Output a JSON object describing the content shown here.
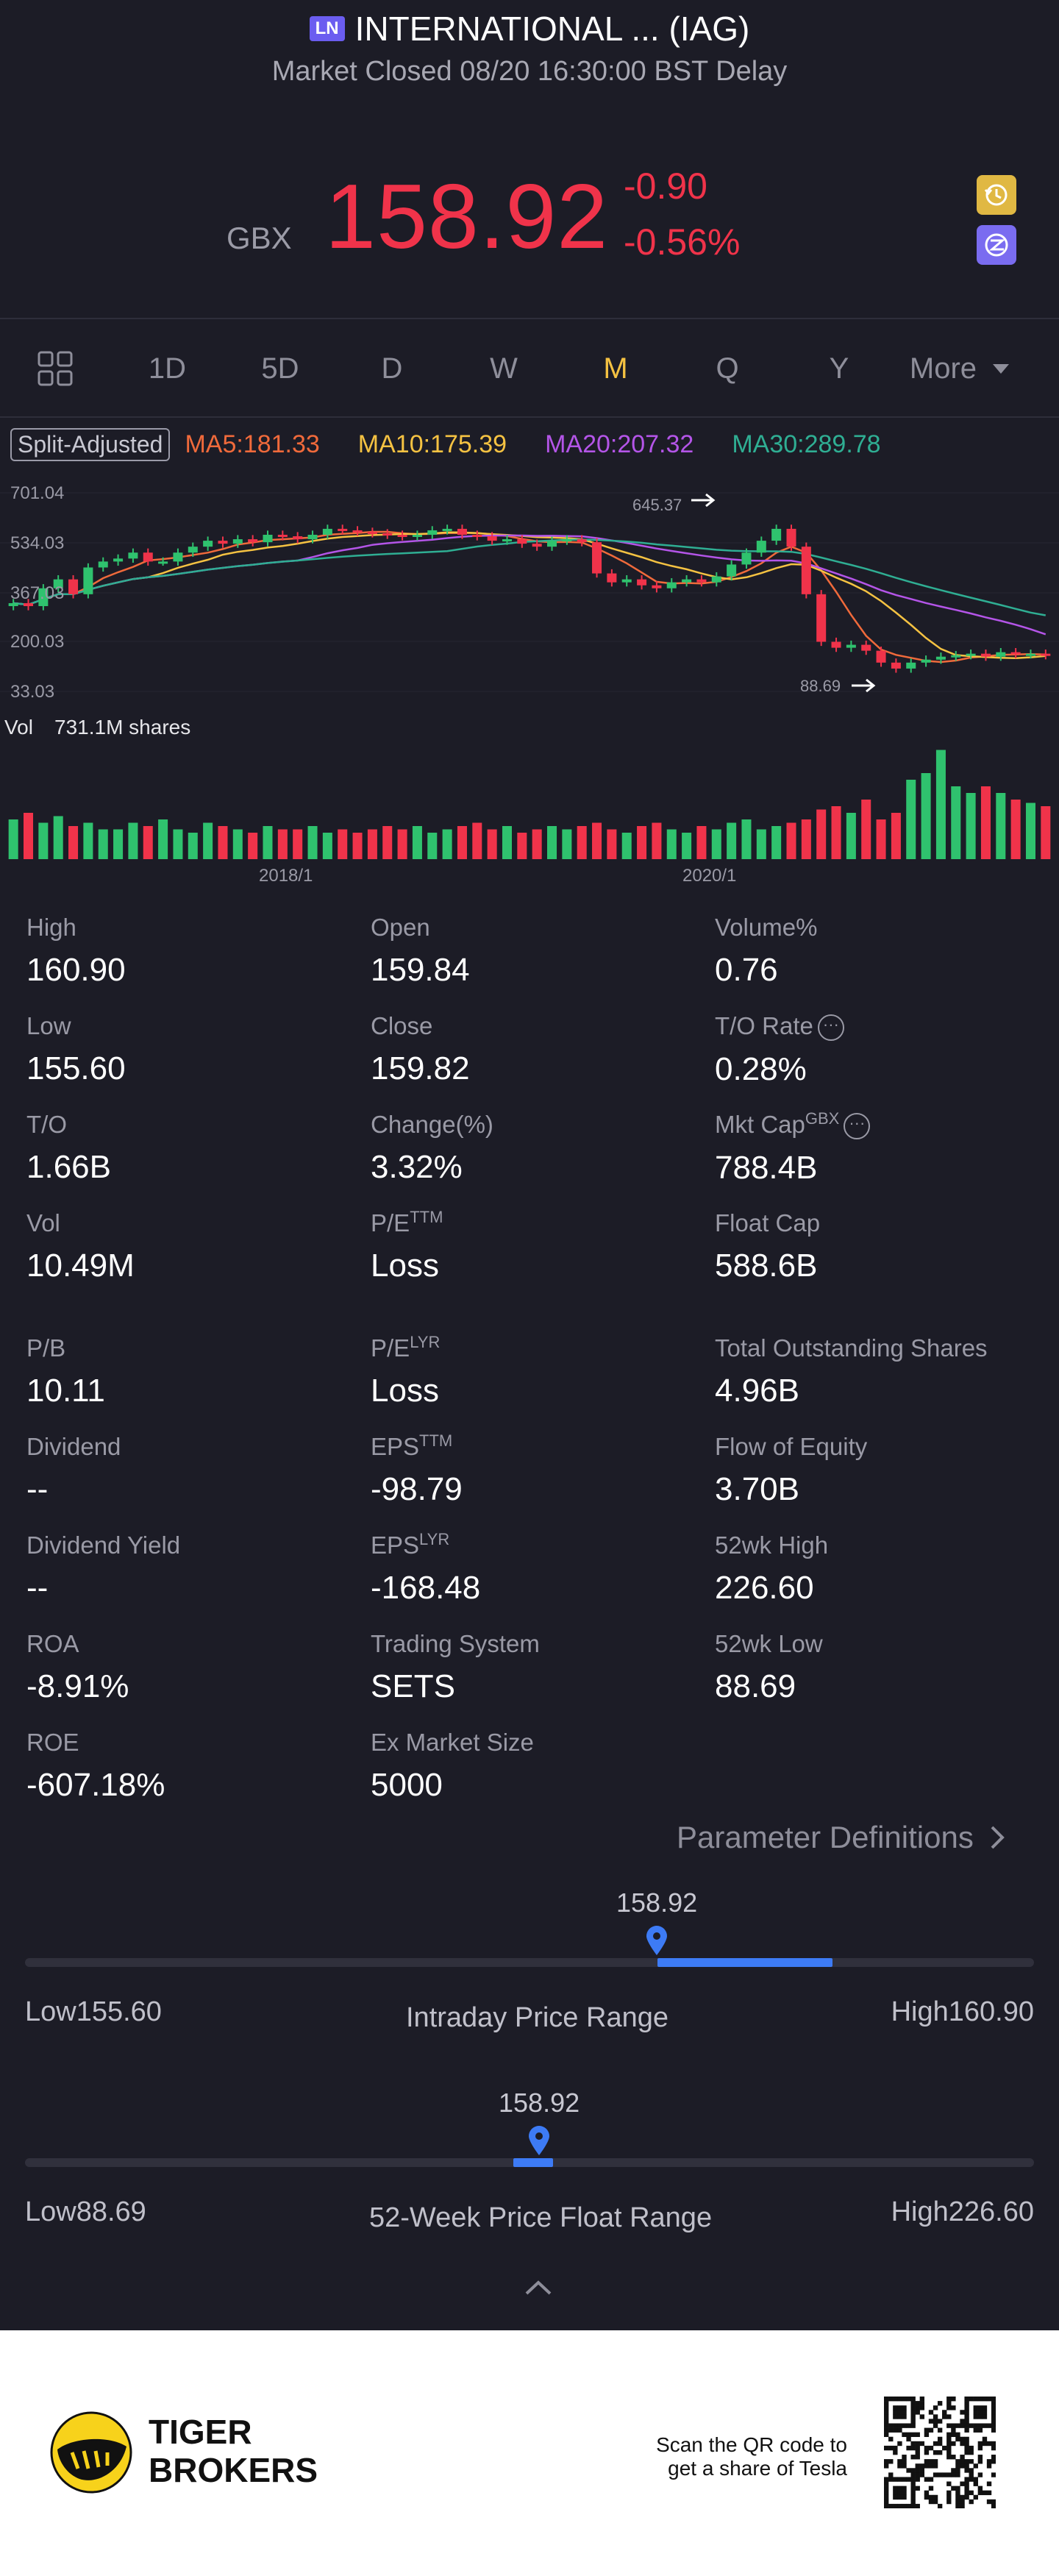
{
  "header": {
    "exchange_badge": "LN",
    "title": "INTERNATIONAL ... (IAG)",
    "status": "Market Closed 08/20 16:30:00 BST Delay"
  },
  "quote": {
    "currency": "GBX",
    "price": "158.92",
    "change": "-0.90",
    "change_pct": "-0.56%",
    "color_down": "#f0334a",
    "color_up": "#2fc26e"
  },
  "tabs": [
    "1D",
    "5D",
    "D",
    "W",
    "M",
    "Q",
    "Y",
    "More"
  ],
  "active_tab": "M",
  "chart": {
    "adjust_label": "Split-Adjusted",
    "ma": [
      {
        "label": "MA5:181.33",
        "color": "#f06a3b"
      },
      {
        "label": "MA10:175.39",
        "color": "#f5c242"
      },
      {
        "label": "MA20:207.32",
        "color": "#b455e8"
      },
      {
        "label": "MA30:289.78",
        "color": "#2fae93"
      }
    ],
    "y_ticks": [
      "701.04",
      "534.03",
      "367.03",
      "200.03",
      "33.03"
    ],
    "high_marker": "645.37",
    "low_marker": "88.69",
    "vol_label": "Vol",
    "vol_value": "731.1M shares",
    "x_ticks": [
      "2018/1",
      "2020/1"
    ]
  },
  "chart_data": {
    "type": "candlestick",
    "period": "monthly",
    "ylim": [
      33.03,
      701.04
    ],
    "y_ticks": [
      701.04,
      534.03,
      367.03,
      200.03,
      33.03
    ],
    "x_ticks": [
      "2018/1",
      "2020/1"
    ],
    "series": [
      {
        "name": "MA5",
        "last": 181.33
      },
      {
        "name": "MA10",
        "last": 175.39
      },
      {
        "name": "MA20",
        "last": 207.32
      },
      {
        "name": "MA30",
        "last": 289.78
      }
    ],
    "annotations": {
      "high": 645.37,
      "low": 88.69
    },
    "volume_last": "731.1M shares",
    "closes": [
      330,
      320,
      380,
      410,
      360,
      450,
      470,
      480,
      500,
      470,
      470,
      500,
      520,
      540,
      530,
      545,
      535,
      560,
      555,
      545,
      560,
      580,
      575,
      570,
      565,
      560,
      555,
      560,
      575,
      580,
      560,
      555,
      540,
      545,
      530,
      520,
      540,
      545,
      535,
      430,
      400,
      410,
      390,
      380,
      400,
      410,
      400,
      420,
      460,
      500,
      540,
      580,
      520,
      360,
      200,
      180,
      190,
      170,
      130,
      110,
      130,
      140,
      150,
      155,
      160,
      150,
      165,
      158,
      160,
      155
    ],
    "volumes": [
      60,
      70,
      55,
      65,
      50,
      55,
      45,
      45,
      55,
      50,
      60,
      45,
      40,
      55,
      50,
      45,
      40,
      50,
      45,
      45,
      50,
      40,
      45,
      40,
      45,
      50,
      45,
      50,
      40,
      45,
      50,
      55,
      45,
      50,
      40,
      45,
      50,
      45,
      50,
      55,
      45,
      40,
      50,
      55,
      45,
      40,
      50,
      45,
      55,
      60,
      45,
      50,
      55,
      60,
      75,
      80,
      70,
      90,
      60,
      70,
      120,
      130,
      165,
      110,
      100,
      110,
      100,
      90,
      85,
      80
    ]
  },
  "stats": [
    {
      "label": "High",
      "value": "160.90"
    },
    {
      "label": "Open",
      "value": "159.84"
    },
    {
      "label": "Volume%",
      "value": "0.76"
    },
    {
      "label": "Low",
      "value": "155.60"
    },
    {
      "label": "Close",
      "value": "159.82"
    },
    {
      "label": "T/O Rate",
      "value": "0.28%"
    },
    {
      "label": "T/O",
      "value": "1.66B"
    },
    {
      "label": "Change(%)",
      "value": "3.32%"
    },
    {
      "label": "Mkt Cap",
      "sup": "GBX",
      "value": "788.4B"
    },
    {
      "label": "Vol",
      "value": "10.49M"
    },
    {
      "label": "P/E",
      "sup": "TTM",
      "value": "Loss"
    },
    {
      "label": "Float Cap",
      "value": "588.6B"
    },
    {
      "label": "P/B",
      "value": "10.11"
    },
    {
      "label": "P/E",
      "sup": "LYR",
      "value": "Loss"
    },
    {
      "label": "Total Outstanding Shares",
      "value": "4.96B"
    },
    {
      "label": "Dividend",
      "value": "--"
    },
    {
      "label": "EPS",
      "sup": "TTM",
      "value": "-98.79"
    },
    {
      "label": "Flow of Equity",
      "value": "3.70B"
    },
    {
      "label": "Dividend Yield",
      "value": "--"
    },
    {
      "label": "EPS",
      "sup": "LYR",
      "value": "-168.48"
    },
    {
      "label": "52wk High",
      "value": "226.60"
    },
    {
      "label": "ROA",
      "value": "-8.91%"
    },
    {
      "label": "Trading System",
      "value": "SETS"
    },
    {
      "label": "52wk Low",
      "value": "88.69"
    },
    {
      "label": "ROE",
      "value": "-607.18%"
    },
    {
      "label": "Ex Market Size",
      "value": "5000"
    }
  ],
  "param_link": "Parameter Definitions",
  "intraday": {
    "value": "158.92",
    "low_label": "Low",
    "low": "155.60",
    "title": "Intraday Price Range",
    "high_label": "High",
    "high": "160.90",
    "position": 0.63
  },
  "week52": {
    "value": "158.92",
    "low_label": "Low",
    "low": "88.69",
    "title": "52-Week Price Float Range",
    "high_label": "High",
    "high": "226.60",
    "position": 0.51
  },
  "footer": {
    "brand_line1": "TIGER",
    "brand_line2": "BROKERS",
    "qr_text_line1": "Scan the QR code to",
    "qr_text_line2": "get a share of Tesla"
  }
}
